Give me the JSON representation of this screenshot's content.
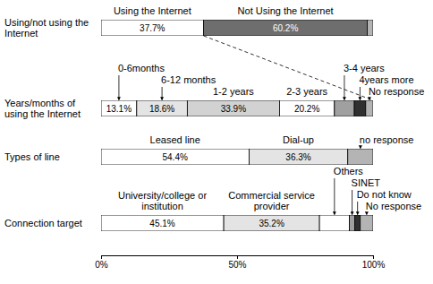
{
  "chart_data": [
    {
      "type": "bar",
      "orientation": "horizontal",
      "stacked": true,
      "data_labels": true,
      "categories": [
        "Using/not using the Internet"
      ],
      "xlim": [
        0,
        100
      ],
      "series": [
        {
          "name": "Using the Internet",
          "color": "#ffffff",
          "values": [
            37.7
          ],
          "value_labels": [
            "37.7%"
          ]
        },
        {
          "name": "Not Using the Internet",
          "color": "#6e6e6e",
          "values": [
            60.2
          ],
          "value_labels": [
            "60.2%"
          ]
        },
        {
          "name": null,
          "color": "#b4b4b4",
          "values": [
            2.1
          ]
        }
      ]
    },
    {
      "type": "bar",
      "orientation": "horizontal",
      "stacked": true,
      "data_labels": true,
      "categories": [
        "Years/months of using the Internet"
      ],
      "xlim": [
        0,
        100
      ],
      "series": [
        {
          "name": "0-6months",
          "color": "#ffffff",
          "values": [
            13.1
          ],
          "value_labels": [
            "13.1%"
          ]
        },
        {
          "name": "6-12 months",
          "color": "#e4e4e4",
          "values": [
            18.6
          ],
          "value_labels": [
            "18.6%"
          ]
        },
        {
          "name": "1-2 years",
          "color": "#d2d2d2",
          "values": [
            33.9
          ],
          "value_labels": [
            "33.9%"
          ]
        },
        {
          "name": "2-3 years",
          "color": "#ffffff",
          "values": [
            20.2
          ],
          "value_labels": [
            "20.2%"
          ]
        },
        {
          "name": "3-4 years",
          "color": "#a0a0a0",
          "values": [
            7.3
          ]
        },
        {
          "name": "4years more",
          "color": "#303030",
          "values": [
            4.2
          ]
        },
        {
          "name": "No response",
          "color": "#b4b4b4",
          "values": [
            2.7
          ]
        }
      ]
    },
    {
      "type": "bar",
      "orientation": "horizontal",
      "stacked": true,
      "data_labels": true,
      "categories": [
        "Types of line"
      ],
      "xlim": [
        0,
        100
      ],
      "series": [
        {
          "name": "Leased line",
          "color": "#ffffff",
          "values": [
            54.4
          ],
          "value_labels": [
            "54.4%"
          ]
        },
        {
          "name": "Dial-up",
          "color": "#e4e4e4",
          "values": [
            36.3
          ],
          "value_labels": [
            "36.3%"
          ]
        },
        {
          "name": "no response",
          "color": "#b4b4b4",
          "values": [
            9.3
          ]
        }
      ]
    },
    {
      "type": "bar",
      "orientation": "horizontal",
      "stacked": true,
      "data_labels": true,
      "categories": [
        "Connection target"
      ],
      "xlim": [
        0,
        100
      ],
      "xticks": [
        {
          "value": 0,
          "label": "0%"
        },
        {
          "value": 50,
          "label": "50%"
        },
        {
          "value": 100,
          "label": "100%"
        }
      ],
      "series": [
        {
          "name": "University/college or institution",
          "color": "#ffffff",
          "values": [
            45.1
          ],
          "value_labels": [
            "45.1%"
          ]
        },
        {
          "name": "Commercial service provider",
          "color": "#e4e4e4",
          "values": [
            35.2
          ],
          "value_labels": [
            "35.2%"
          ]
        },
        {
          "name": "Others",
          "color": "#ffffff",
          "values": [
            11.0
          ]
        },
        {
          "name": "SINET",
          "color": "#a0a0a0",
          "values": [
            2.0
          ]
        },
        {
          "name": "Do not know",
          "color": "#303030",
          "values": [
            2.0
          ]
        },
        {
          "name": "No response",
          "color": "#b4b4b4",
          "values": [
            4.7
          ]
        }
      ]
    }
  ]
}
